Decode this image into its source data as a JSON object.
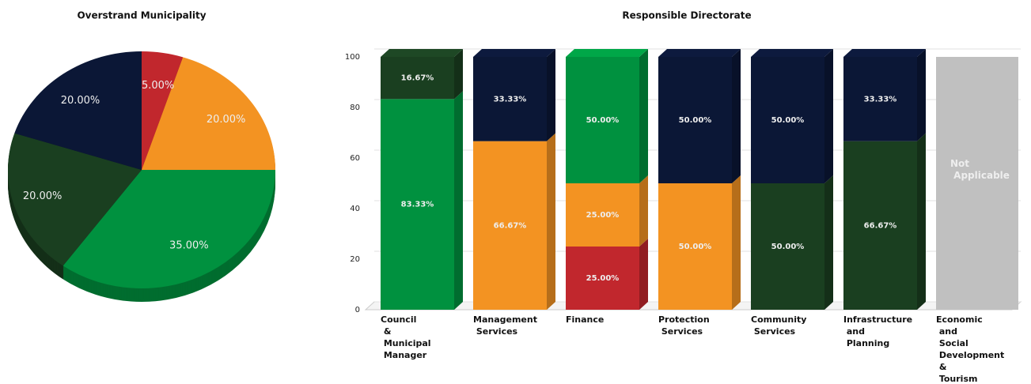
{
  "chart_data": [
    {
      "type": "pie",
      "title": "Overstrand Municipality",
      "values": [
        5,
        20,
        35,
        20,
        20
      ],
      "value_labels": [
        "5.00%",
        "20.00%",
        "35.00%",
        "20.00%",
        "20.00%"
      ],
      "colors": [
        "#c1272d",
        "#f39322",
        "#00913f",
        "#1a3f20",
        "#0b1736"
      ]
    },
    {
      "type": "stacked_bar",
      "title": "Responsible Directorate",
      "categories": [
        "Council & Municipal Manager",
        "Management Services",
        "Finance",
        "Protection Services",
        "Community Services",
        "Infrastructure and Planning",
        "Economic and Social Development & Tourism"
      ],
      "series": [
        {
          "color": "#c1272d",
          "values": [
            0,
            0,
            25,
            0,
            0,
            0,
            null
          ],
          "value_labels": [
            null,
            null,
            "25.00%",
            null,
            null,
            null,
            null
          ]
        },
        {
          "color": "#f39322",
          "values": [
            0,
            66.67,
            25,
            50,
            0,
            0,
            null
          ],
          "value_labels": [
            null,
            "66.67%",
            "25.00%",
            "50.00%",
            null,
            null,
            null
          ]
        },
        {
          "color": "#00913f",
          "values": [
            83.33,
            0,
            50,
            0,
            0,
            0,
            null
          ],
          "value_labels": [
            "83.33%",
            null,
            "50.00%",
            null,
            null,
            null,
            null
          ]
        },
        {
          "color": "#1a3f20",
          "values": [
            16.67,
            0,
            0,
            0,
            50,
            66.67,
            null
          ],
          "value_labels": [
            "16.67%",
            null,
            null,
            null,
            "50.00%",
            "66.67%",
            null
          ]
        },
        {
          "color": "#0b1736",
          "values": [
            0,
            33.33,
            0,
            50,
            50,
            33.33,
            null
          ],
          "value_labels": [
            null,
            "33.33%",
            null,
            "50.00%",
            "50.00%",
            "33.33%",
            null
          ]
        }
      ],
      "na_label": "Not Applicable",
      "na_color": "#c0c0c0",
      "ylim": [
        0,
        100
      ],
      "yticks": [
        0,
        20,
        40,
        60,
        80,
        100
      ],
      "grid": true
    }
  ]
}
